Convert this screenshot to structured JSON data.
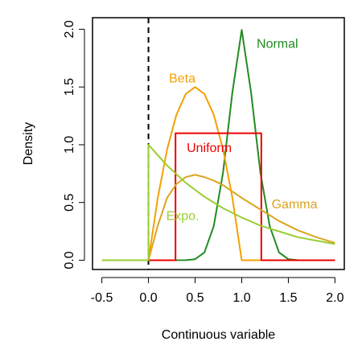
{
  "chart_data": {
    "type": "line",
    "title": "",
    "xlabel": "Continuous variable",
    "ylabel": "Density",
    "xlim": [
      -0.6,
      2.1
    ],
    "ylim": [
      -0.08,
      2.1
    ],
    "grid": false,
    "x_ticks": [
      -0.5,
      0.0,
      0.5,
      1.0,
      1.5,
      2.0
    ],
    "x_tick_labels": [
      "-0.5",
      "0.0",
      "0.5",
      "1.0",
      "1.5",
      "2.0"
    ],
    "y_ticks": [
      0.0,
      0.5,
      1.0,
      1.5,
      2.0
    ],
    "y_tick_labels": [
      "0.0",
      "0.5",
      "1.0",
      "1.5",
      "2.0"
    ],
    "reference_line": {
      "x": 0.0,
      "style": "dashed",
      "color": "#000000"
    },
    "series": [
      {
        "name": "Normal",
        "color": "#228b22",
        "x": [
          -0.5,
          0.0,
          0.2,
          0.4,
          0.5,
          0.6,
          0.7,
          0.8,
          0.9,
          1.0,
          1.1,
          1.2,
          1.3,
          1.4,
          1.5,
          1.6,
          1.8,
          2.0
        ],
        "y": [
          0.0,
          0.0,
          0.0,
          0.0007,
          0.0089,
          0.0676,
          0.2959,
          0.7598,
          1.4547,
          1.9947,
          1.4547,
          0.7598,
          0.2959,
          0.0676,
          0.0089,
          0.0007,
          0.0,
          0.0
        ]
      },
      {
        "name": "Beta",
        "color": "#f5a000",
        "x": [
          -0.5,
          0.0,
          0.1,
          0.2,
          0.3,
          0.4,
          0.5,
          0.6,
          0.7,
          0.8,
          0.9,
          1.0,
          1.5,
          2.0
        ],
        "y": [
          0.0,
          0.0,
          0.54,
          0.96,
          1.26,
          1.44,
          1.5,
          1.44,
          1.26,
          0.96,
          0.54,
          0.0,
          0.0,
          0.0
        ]
      },
      {
        "name": "Uniform",
        "color": "#ee0000",
        "x": [
          -0.5,
          0.29,
          0.29,
          1.21,
          1.21,
          2.0
        ],
        "y": [
          0.0,
          0.0,
          1.1,
          1.1,
          0.0,
          0.0
        ]
      },
      {
        "name": "Gamma",
        "color": "#daa520",
        "x": [
          -0.5,
          0.0,
          0.1,
          0.2,
          0.3,
          0.4,
          0.5,
          0.6,
          0.7,
          0.8,
          1.0,
          1.2,
          1.4,
          1.6,
          1.8,
          2.0
        ],
        "y": [
          0.0,
          0.0,
          0.3,
          0.54,
          0.66,
          0.72,
          0.74,
          0.72,
          0.69,
          0.65,
          0.54,
          0.44,
          0.34,
          0.26,
          0.2,
          0.15
        ]
      },
      {
        "name": "Expo.",
        "color": "#9acd32",
        "x": [
          -0.5,
          0.0,
          0.0,
          0.2,
          0.4,
          0.6,
          0.8,
          1.0,
          1.2,
          1.4,
          1.6,
          1.8,
          2.0
        ],
        "y": [
          0.0,
          0.0,
          1.0,
          0.82,
          0.67,
          0.55,
          0.45,
          0.37,
          0.3,
          0.25,
          0.2,
          0.17,
          0.14
        ]
      }
    ],
    "annotations": [
      {
        "text": "Normal",
        "x": 1.16,
        "y": 1.88,
        "color": "#228b22"
      },
      {
        "text": "Beta",
        "x": 0.22,
        "y": 1.58,
        "color": "#f5a000"
      },
      {
        "text": "Uniform",
        "x": 0.41,
        "y": 0.98,
        "color": "#ee0000"
      },
      {
        "text": "Gamma",
        "x": 1.32,
        "y": 0.49,
        "color": "#daa520"
      },
      {
        "text": "Expo.",
        "x": 0.19,
        "y": 0.39,
        "color": "#9acd32"
      }
    ]
  }
}
